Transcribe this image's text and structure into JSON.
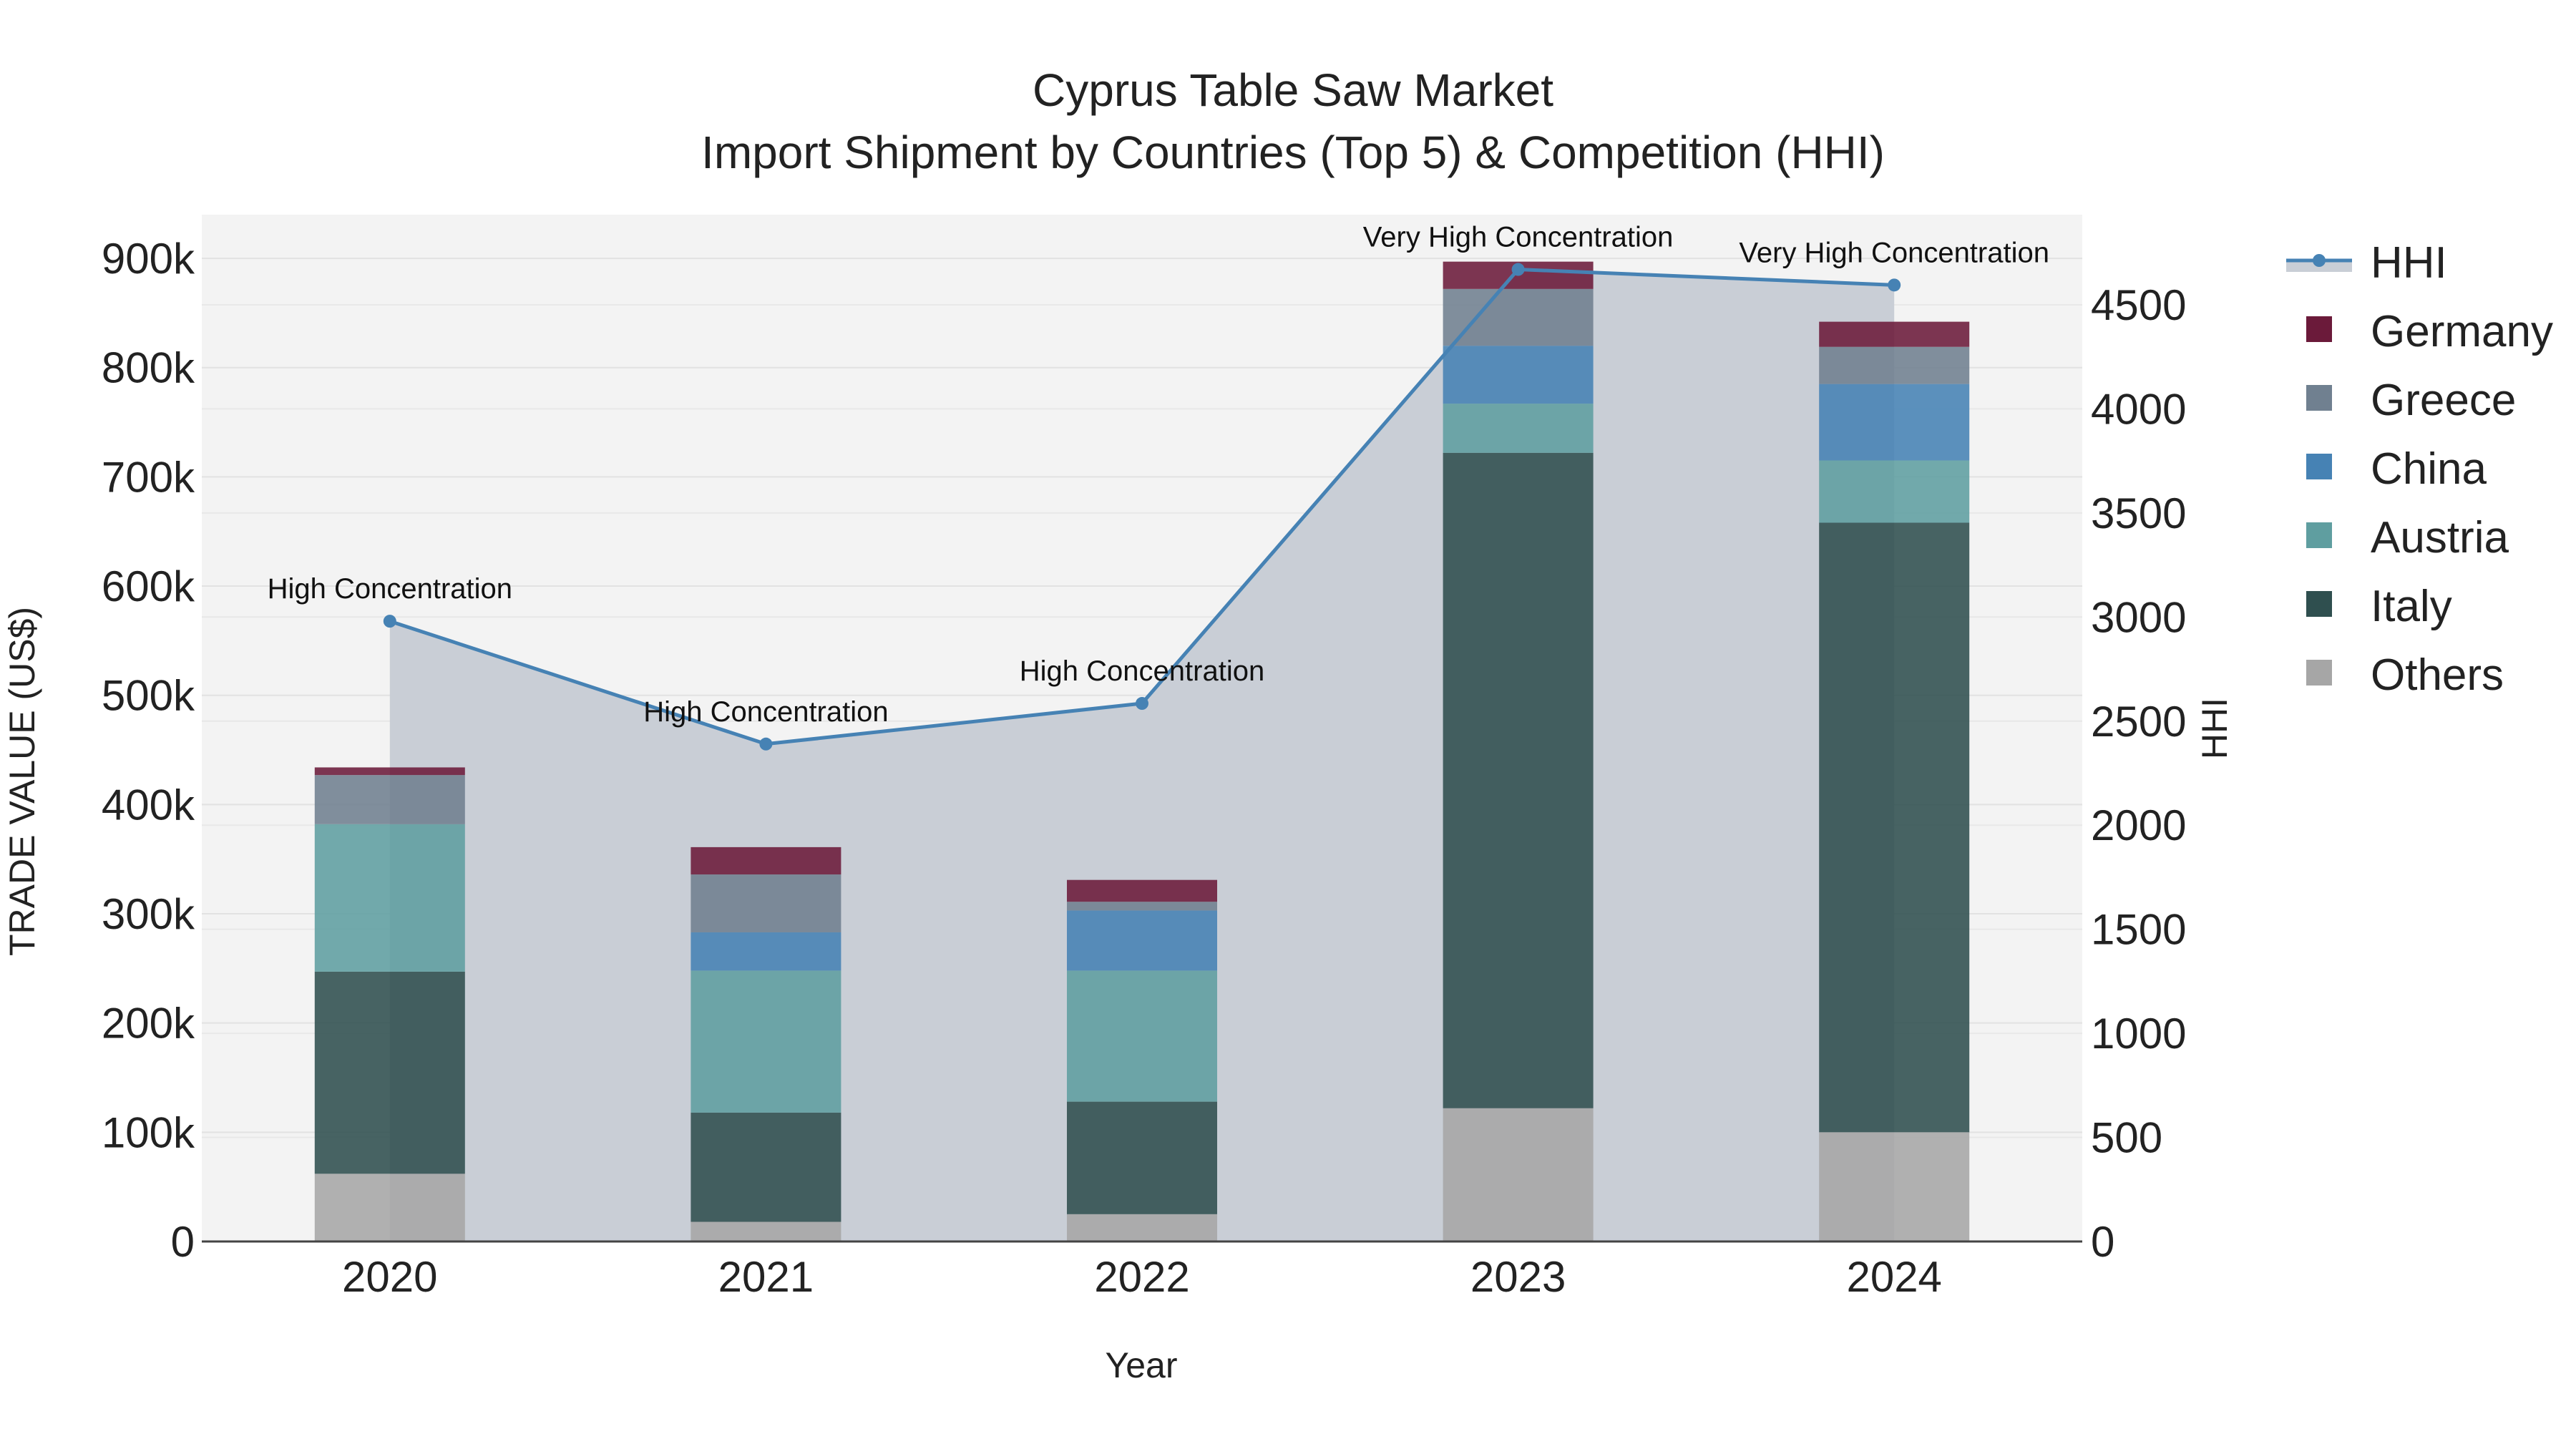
{
  "chart_data": {
    "type": "bar",
    "title": "Cyprus Table Saw Market",
    "subtitle": "Import Shipment by Countries (Top 5) & Competition (HHI)",
    "xlabel": "Year",
    "ylabel": "TRADE VALUE (US$)",
    "y2label": "HHI",
    "categories": [
      "2020",
      "2021",
      "2022",
      "2023",
      "2024"
    ],
    "ylim": [
      0,
      940000
    ],
    "y2lim": [
      0,
      4933
    ],
    "yticks": [
      0,
      100000,
      200000,
      300000,
      400000,
      500000,
      600000,
      700000,
      800000,
      900000
    ],
    "ytick_labels": [
      "0",
      "100k",
      "200k",
      "300k",
      "400k",
      "500k",
      "600k",
      "700k",
      "800k",
      "900k"
    ],
    "y2ticks": [
      0,
      500,
      1000,
      1500,
      2000,
      2500,
      3000,
      3500,
      4000,
      4500
    ],
    "y2tick_labels": [
      "0",
      "500",
      "1000",
      "1500",
      "2000",
      "2500",
      "3000",
      "3500",
      "4000",
      "4500"
    ],
    "series": [
      {
        "name": "Others",
        "color": "#a6a6a6",
        "values": [
          62000,
          18000,
          25000,
          122000,
          100000
        ]
      },
      {
        "name": "Italy",
        "color": "#2f4f4f",
        "values": [
          185000,
          100000,
          103000,
          600000,
          558000
        ]
      },
      {
        "name": "Austria",
        "color": "#5f9ea0",
        "values": [
          135000,
          130000,
          120000,
          45000,
          57000
        ]
      },
      {
        "name": "China",
        "color": "#4682b4",
        "values": [
          0,
          35000,
          55000,
          53000,
          70000
        ]
      },
      {
        "name": "Greece",
        "color": "#708090",
        "values": [
          45000,
          53000,
          8000,
          52000,
          34000
        ]
      },
      {
        "name": "Germany",
        "color": "#6b1a3a",
        "values": [
          7000,
          25000,
          20000,
          25000,
          23000
        ]
      }
    ],
    "hhi": {
      "name": "HHI",
      "color": "#4682b4",
      "values": [
        2980,
        2390,
        2585,
        4670,
        4595
      ],
      "labels": [
        "High Concentration",
        "High Concentration",
        "High Concentration",
        "Very High Concentration",
        "Very High Concentration"
      ]
    },
    "legend": [
      "HHI",
      "Germany",
      "Greece",
      "China",
      "Austria",
      "Italy",
      "Others"
    ],
    "legend_position": "right"
  }
}
